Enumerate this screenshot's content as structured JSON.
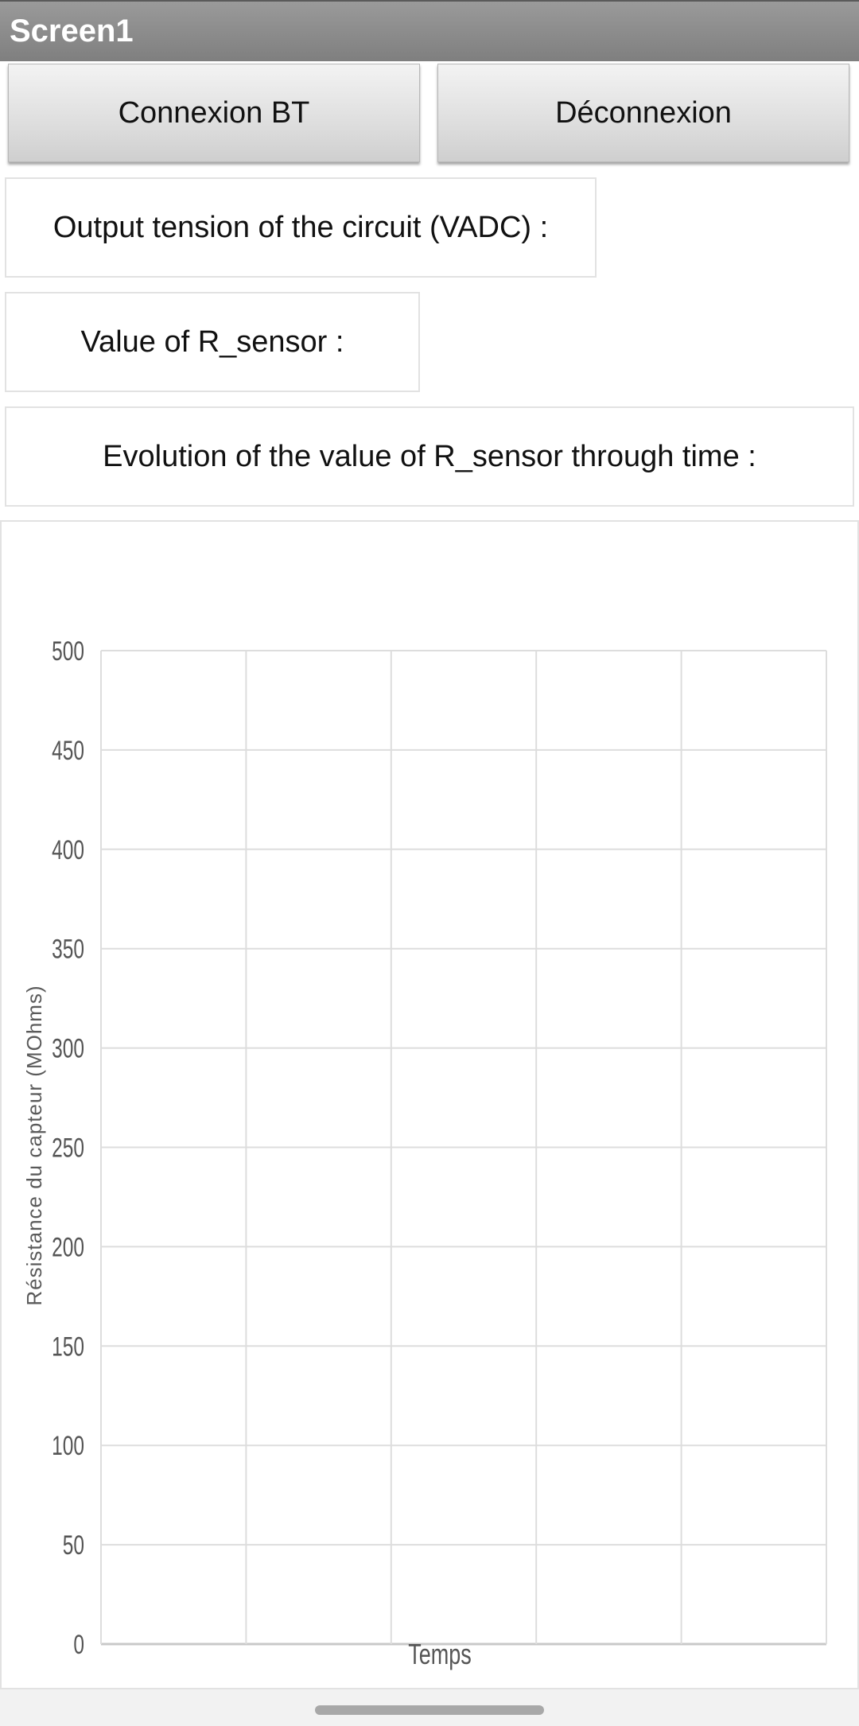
{
  "app": {
    "title": "Screen1"
  },
  "buttons": {
    "connect": "Connexion BT",
    "disconnect": "Déconnexion"
  },
  "labels": {
    "vadc": "Output tension of the circuit (VADC) :",
    "rsensor": "Value of R_sensor :",
    "evolution": "Evolution of the value of R_sensor through time :"
  },
  "chart_data": {
    "type": "line",
    "title": "",
    "xlabel": "Temps",
    "ylabel": "Résistance du capteur (MOhms)",
    "ylim": [
      0,
      500
    ],
    "y_ticks": [
      0,
      50,
      100,
      150,
      200,
      250,
      300,
      350,
      400,
      450,
      500
    ],
    "x_gridlines": 5,
    "grid": true,
    "series": []
  },
  "colors": {
    "titlebar": "#8c8c8c",
    "grid": "#dddddd",
    "axis_text": "#555555"
  }
}
